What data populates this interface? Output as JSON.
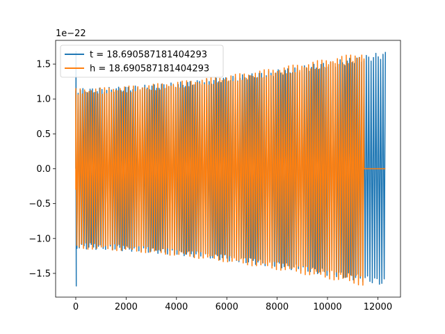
{
  "chart_data": {
    "type": "line",
    "title": "",
    "xlabel": "",
    "ylabel": "",
    "scale_label": "1e−22",
    "xlim": [
      -800,
      12900
    ],
    "ylim": [
      -1.84,
      1.84
    ],
    "xticks": [
      0,
      2000,
      4000,
      6000,
      8000,
      10000,
      12000
    ],
    "xtick_labels": [
      "0",
      "2000",
      "4000",
      "6000",
      "8000",
      "10000",
      "12000"
    ],
    "yticks": [
      -1.5,
      -1.0,
      -0.5,
      0.0,
      0.5,
      1.0,
      1.5
    ],
    "ytick_labels": [
      "−1.5",
      "−1.0",
      "−0.5",
      "0.0",
      "0.5",
      "1.0",
      "1.5"
    ],
    "grid": false,
    "legend_position": "upper-left",
    "series": [
      {
        "name": "t = 18.690587181404293",
        "color": "#1f77b4",
        "x_start": 0,
        "x_end": 12300,
        "amplitude_start": 1.15,
        "amplitude_end": 1.68,
        "initial_spike": 1.68,
        "flat_after": null
      },
      {
        "name": "h = 18.690587181404293",
        "color": "#ff7f0e",
        "x_start": 0,
        "x_end": 11450,
        "amplitude_start": 1.15,
        "amplitude_end": 1.68,
        "initial_spike": null,
        "flat_after": 12300
      }
    ]
  }
}
